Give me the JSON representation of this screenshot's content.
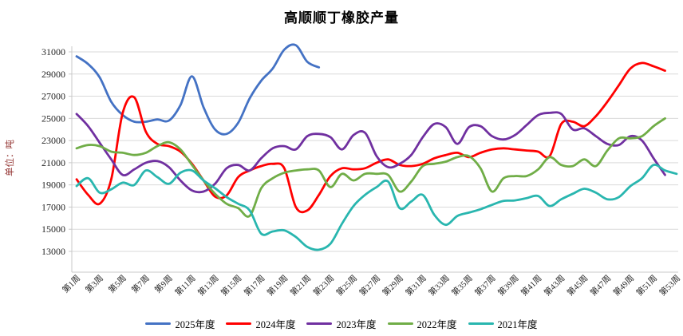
{
  "title": "高顺顺丁橡胶产量",
  "y_axis": {
    "label": "单位：吨",
    "tick_labels": [
      "13000",
      "15000",
      "17000",
      "19000",
      "21000",
      "23000",
      "25000",
      "27000",
      "29000",
      "31000"
    ],
    "min": 13000,
    "max": 31000,
    "step": 2000
  },
  "x_axis": {
    "tick_labels": [
      "第1周",
      "第3周",
      "第5周",
      "第7周",
      "第9周",
      "第11周",
      "第13周",
      "第15周",
      "第17周",
      "第19周",
      "第21周",
      "第23周",
      "第25周",
      "第27周",
      "第29周",
      "第31周",
      "第33周",
      "第35周",
      "第37周",
      "第39周",
      "第41周",
      "第43周",
      "第45周",
      "第47周",
      "第49周",
      "第51周",
      "第53周"
    ],
    "weeks_total": 53
  },
  "colors": {
    "grid": "#d9d9d9",
    "axis": "#c9c9c9",
    "tick_text": "#262626",
    "y_axis_label": "#953735"
  },
  "chart_data": {
    "type": "line",
    "title": "高顺顺丁橡胶产量",
    "ylabel": "单位：吨",
    "ylim": [
      13000,
      31000
    ],
    "x_unit": "week",
    "grid": "horizontal",
    "legend_position": "bottom",
    "series": [
      {
        "name": "2025年度",
        "color": "#4472C4",
        "start_week": 1,
        "values": [
          30600,
          29900,
          28700,
          26500,
          25300,
          24700,
          24700,
          24900,
          24800,
          26200,
          28800,
          26000,
          24000,
          23600,
          24600,
          26800,
          28400,
          29500,
          31200,
          31600,
          30100,
          29600
        ]
      },
      {
        "name": "2024年度",
        "color": "#FF0000",
        "start_week": 1,
        "values": [
          19500,
          18100,
          17300,
          19500,
          25500,
          26900,
          23800,
          22700,
          22500,
          22000,
          20900,
          19400,
          17950,
          18050,
          19700,
          20300,
          20700,
          20900,
          20500,
          17000,
          16700,
          18100,
          19800,
          20500,
          20400,
          20500,
          21000,
          21300,
          20800,
          20700,
          20900,
          21400,
          21700,
          21900,
          21500,
          21900,
          22200,
          22300,
          22200,
          22100,
          22000,
          21600,
          24500,
          24700,
          24300,
          25200,
          26500,
          28000,
          29500,
          30000,
          29700,
          29300
        ]
      },
      {
        "name": "2023年度",
        "color": "#7030A0",
        "start_week": 1,
        "values": [
          25400,
          24300,
          22800,
          21300,
          19900,
          20400,
          21000,
          21150,
          20600,
          19400,
          18500,
          18400,
          19100,
          20500,
          20800,
          20300,
          21400,
          22300,
          22500,
          22200,
          23400,
          23600,
          23300,
          22200,
          23500,
          23700,
          21600,
          20600,
          20900,
          21700,
          23300,
          24500,
          24200,
          22700,
          24200,
          24300,
          23400,
          23100,
          23500,
          24400,
          25300,
          25500,
          25400,
          24000,
          24100,
          23400,
          22700,
          22600,
          23400,
          23000,
          21400,
          19900
        ]
      },
      {
        "name": "2022年度",
        "color": "#70AD47",
        "start_week": 1,
        "values": [
          22300,
          22600,
          22500,
          22000,
          21900,
          21700,
          21900,
          22500,
          22850,
          22200,
          20800,
          19400,
          18200,
          17300,
          16900,
          16200,
          18700,
          19600,
          20100,
          20300,
          20400,
          20300,
          18800,
          20000,
          19400,
          20000,
          20000,
          19900,
          18400,
          19300,
          20700,
          20900,
          21100,
          21500,
          21600,
          20500,
          18400,
          19600,
          19800,
          19800,
          20400,
          21500,
          20800,
          20700,
          21300,
          20700,
          22100,
          23200,
          23200,
          23400,
          24300,
          25000
        ]
      },
      {
        "name": "2021年度",
        "color": "#29B6AF",
        "start_week": 1,
        "values": [
          18900,
          19600,
          18300,
          18600,
          19200,
          19000,
          20300,
          19700,
          19100,
          20100,
          20300,
          19400,
          18700,
          17900,
          17300,
          16700,
          14600,
          14800,
          14900,
          14300,
          13400,
          13150,
          13700,
          15500,
          17100,
          18100,
          18800,
          19300,
          16900,
          17500,
          18100,
          16300,
          15400,
          16200,
          16500,
          16800,
          17200,
          17550,
          17600,
          17800,
          18000,
          17100,
          17700,
          18200,
          18650,
          18300,
          17700,
          17900,
          18900,
          19600,
          20800,
          20300,
          20000
        ]
      }
    ]
  }
}
